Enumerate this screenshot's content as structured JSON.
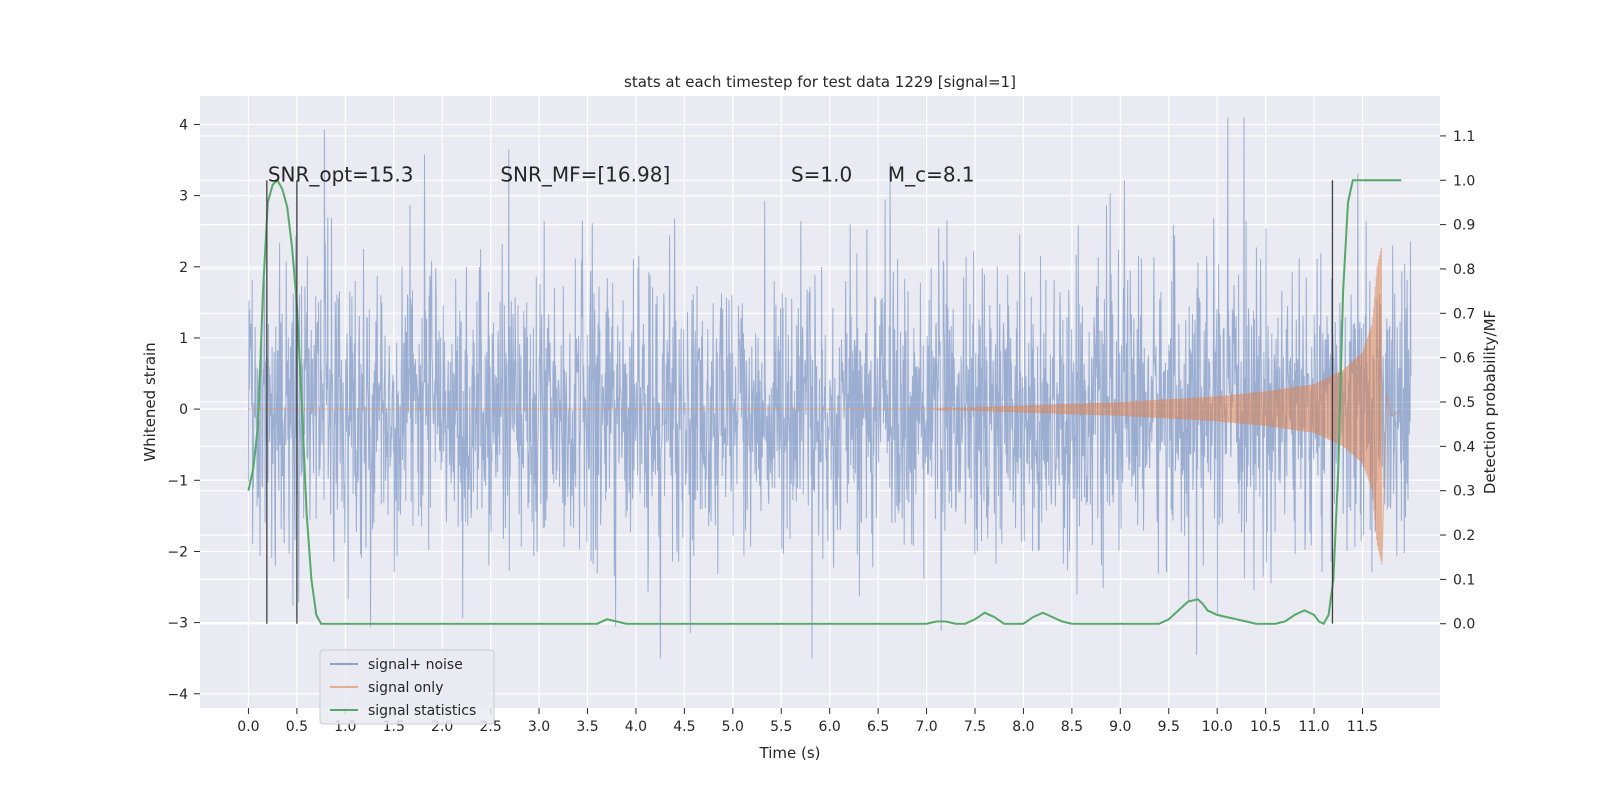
{
  "chart_data": {
    "type": "line",
    "title": "stats at each timestep for test data 1229 [signal=1]",
    "xlabel": "Time (s)",
    "ylabel": "Whitened strain",
    "ylabel_right": "Detection probability/MF",
    "xlim": [
      -0.5,
      12.3
    ],
    "ylim": [
      -4.2,
      4.4
    ],
    "ylim_right": [
      -0.19,
      1.19
    ],
    "x_ticks": [
      "0.0",
      "0.5",
      "1.0",
      "1.5",
      "2.0",
      "2.5",
      "3.0",
      "3.5",
      "4.0",
      "4.5",
      "5.0",
      "5.5",
      "6.0",
      "6.5",
      "7.0",
      "7.5",
      "8.0",
      "8.5",
      "9.0",
      "9.5",
      "10.0",
      "10.5",
      "11.0",
      "11.5"
    ],
    "y_ticks": [
      "−4",
      "−3",
      "−2",
      "−1",
      "0",
      "1",
      "2",
      "3",
      "4"
    ],
    "y_ticks_right": [
      "0.0",
      "0.1",
      "0.2",
      "0.3",
      "0.4",
      "0.5",
      "0.6",
      "0.7",
      "0.8",
      "0.9",
      "1.0",
      "1.1"
    ],
    "grid": true,
    "legend_position": "lower-left",
    "annotations": [
      {
        "text": "SNR_opt=15.3",
        "x": 0.2
      },
      {
        "text": "SNR_MF=[16.98]",
        "x": 2.6
      },
      {
        "text": "S=1.0",
        "x": 5.6
      },
      {
        "text": "M_c=8.1",
        "x": 6.6
      }
    ],
    "annotation_y": 3.3,
    "vertical_lines": [
      0.19,
      0.5,
      11.19
    ],
    "series": [
      {
        "name": "signal+ noise",
        "color": "#4c72b0",
        "kind": "noise",
        "x_range": [
          0.0,
          12.0
        ],
        "band_95": [
          -1.45,
          1.45
        ],
        "peak_range": [
          -3.5,
          4.1
        ]
      },
      {
        "name": "signal only",
        "color": "#dd8452",
        "kind": "chirp",
        "x_range": [
          0.0,
          11.7
        ],
        "envelope": [
          [
            0.0,
            0.0
          ],
          [
            7.0,
            0.0
          ],
          [
            8.0,
            0.05
          ],
          [
            9.0,
            0.1
          ],
          [
            10.0,
            0.18
          ],
          [
            10.5,
            0.25
          ],
          [
            11.0,
            0.35
          ],
          [
            11.3,
            0.55
          ],
          [
            11.5,
            0.8
          ],
          [
            11.6,
            1.2
          ],
          [
            11.65,
            2.0
          ],
          [
            11.7,
            2.3
          ]
        ]
      },
      {
        "name": "signal statistics",
        "color": "#55a868",
        "kind": "line",
        "axis": "right",
        "x": [
          0.0,
          0.05,
          0.1,
          0.15,
          0.2,
          0.25,
          0.3,
          0.35,
          0.4,
          0.45,
          0.5,
          0.55,
          0.6,
          0.65,
          0.7,
          0.75,
          0.8,
          1.0,
          1.3,
          1.5,
          2.0,
          2.5,
          3.0,
          3.5,
          3.6,
          3.7,
          3.8,
          3.9,
          4.0,
          4.5,
          5.0,
          5.5,
          5.8,
          6.0,
          6.5,
          7.0,
          7.1,
          7.2,
          7.3,
          7.4,
          7.5,
          7.6,
          7.7,
          7.8,
          7.9,
          8.0,
          8.1,
          8.2,
          8.3,
          8.4,
          8.5,
          8.7,
          9.0,
          9.4,
          9.5,
          9.6,
          9.7,
          9.8,
          9.85,
          9.9,
          10.0,
          10.1,
          10.2,
          10.3,
          10.4,
          10.5,
          10.6,
          10.7,
          10.8,
          10.9,
          11.0,
          11.05,
          11.1,
          11.15,
          11.2,
          11.25,
          11.3,
          11.35,
          11.4,
          11.5,
          11.7,
          11.9
        ],
        "y": [
          0.3,
          0.35,
          0.45,
          0.75,
          0.95,
          0.99,
          1.0,
          0.98,
          0.94,
          0.85,
          0.72,
          0.5,
          0.25,
          0.1,
          0.02,
          0.0,
          0.0,
          0.0,
          0.0,
          0.0,
          0.0,
          0.0,
          0.0,
          0.0,
          0.0,
          0.01,
          0.005,
          0.0,
          0.0,
          0.0,
          0.0,
          0.0,
          0.0,
          0.0,
          0.0,
          0.0,
          0.005,
          0.005,
          0.0,
          0.0,
          0.01,
          0.025,
          0.015,
          0.0,
          0.0,
          0.0,
          0.015,
          0.025,
          0.015,
          0.005,
          0.0,
          0.0,
          0.0,
          0.0,
          0.01,
          0.03,
          0.05,
          0.055,
          0.045,
          0.03,
          0.02,
          0.015,
          0.01,
          0.005,
          0.0,
          0.0,
          0.0,
          0.005,
          0.02,
          0.03,
          0.02,
          0.005,
          0.0,
          0.02,
          0.1,
          0.35,
          0.75,
          0.95,
          1.0,
          1.0,
          1.0,
          1.0
        ]
      }
    ]
  }
}
